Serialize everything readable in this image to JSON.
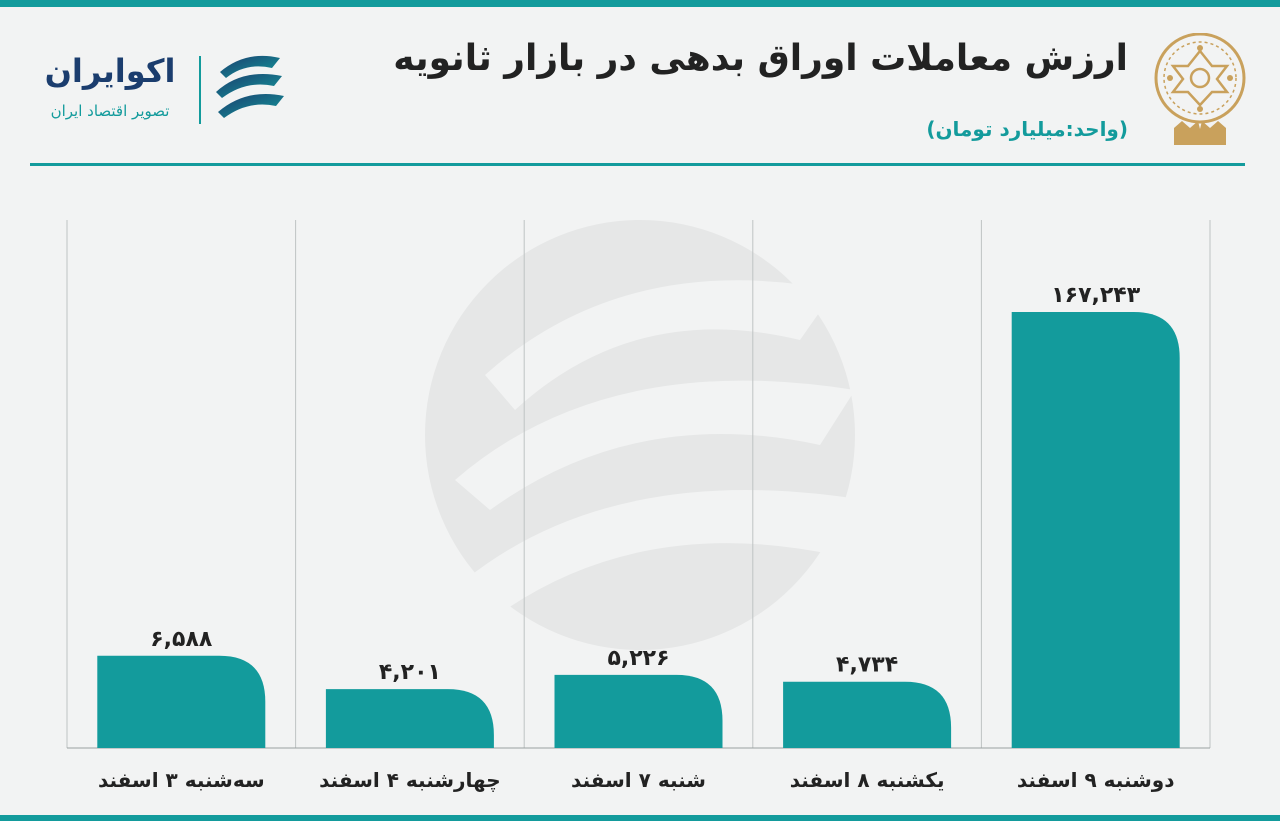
{
  "header": {
    "title": "ارزش معاملات اوراق بدهی در بازار ثانویه",
    "unit": "(واحد:میلیارد تومان)"
  },
  "brand": {
    "name": "اکوایران",
    "tagline": "تصویر اقتصاد ایران"
  },
  "colors": {
    "accent": "#139b9c",
    "title": "#222222",
    "brand_navy": "#1b3d6e",
    "emblem_gold": "#c9a15c"
  },
  "icons": [
    "bourse-emblem-icon",
    "ecoiran-logo-icon"
  ],
  "chart_data": {
    "type": "bar",
    "categories": [
      "سه‌شنبه ۳ اسفند",
      "چهارشنبه ۴ اسفند",
      "شنبه ۷ اسفند",
      "یکشنبه ۸ اسفند",
      "دوشنبه ۹ اسفند"
    ],
    "values": [
      6588,
      4201,
      5226,
      4734,
      167243
    ],
    "value_labels": [
      "۶,۵۸۸",
      "۴,۲۰۱",
      "۵,۲۲۶",
      "۴,۷۳۴",
      "۱۶۷,۲۴۳"
    ],
    "title": "ارزش معاملات اوراق بدهی در بازار ثانویه",
    "unit": "(واحد:میلیارد تومان)",
    "bar_color": "#139b9c",
    "scale": "broken",
    "grid": "vertical separators"
  }
}
